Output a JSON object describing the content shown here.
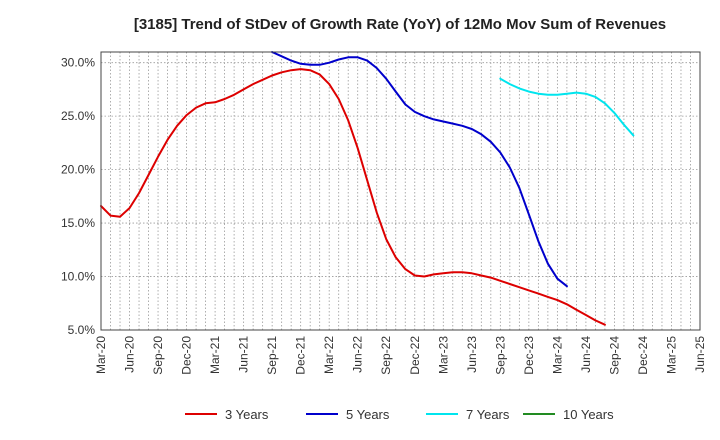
{
  "chart_data": {
    "type": "line",
    "title": "[3185]  Trend of StDev of Growth Rate (YoY) of 12Mo Mov Sum of Revenues",
    "xlabel": "",
    "ylabel": "",
    "ylim": [
      5.0,
      31.0
    ],
    "yticks": [
      5.0,
      10.0,
      15.0,
      20.0,
      25.0,
      30.0
    ],
    "ytick_labels": [
      "5.0%",
      "10.0%",
      "15.0%",
      "20.0%",
      "25.0%",
      "30.0%"
    ],
    "x_start": "Mar-20",
    "x_end": "Jun-25",
    "xtick_labels": [
      "Mar-20",
      "Jun-20",
      "Sep-20",
      "Dec-20",
      "Mar-21",
      "Jun-21",
      "Sep-21",
      "Dec-21",
      "Mar-22",
      "Jun-22",
      "Sep-22",
      "Dec-22",
      "Mar-23",
      "Jun-23",
      "Sep-23",
      "Dec-23",
      "Mar-24",
      "Jun-24",
      "Sep-24",
      "Dec-24",
      "Mar-25",
      "Jun-25"
    ],
    "grid": true,
    "legend_position": "bottom",
    "series": [
      {
        "name": "3 Years",
        "color": "#dd0000",
        "start_month_index": 0,
        "values": [
          16.6,
          15.7,
          15.6,
          16.4,
          17.8,
          19.5,
          21.2,
          22.8,
          24.1,
          25.1,
          25.8,
          26.2,
          26.3,
          26.6,
          27.0,
          27.5,
          28.0,
          28.4,
          28.8,
          29.1,
          29.3,
          29.4,
          29.3,
          28.9,
          28.0,
          26.6,
          24.6,
          22.0,
          19.0,
          16.0,
          13.5,
          11.8,
          10.7,
          10.1,
          10.0,
          10.2,
          10.3,
          10.4,
          10.4,
          10.3,
          10.1,
          9.9,
          9.6,
          9.3,
          9.0,
          8.7,
          8.4,
          8.1,
          7.8,
          7.4,
          6.9,
          6.4,
          5.9,
          5.5
        ]
      },
      {
        "name": "5 Years",
        "color": "#0000cc",
        "start_month_index": 18,
        "values": [
          31.0,
          30.6,
          30.2,
          29.9,
          29.8,
          29.8,
          30.0,
          30.3,
          30.5,
          30.5,
          30.2,
          29.5,
          28.5,
          27.3,
          26.1,
          25.4,
          25.0,
          24.7,
          24.5,
          24.3,
          24.1,
          23.8,
          23.3,
          22.6,
          21.6,
          20.2,
          18.3,
          15.8,
          13.3,
          11.2,
          9.8,
          9.1
        ]
      },
      {
        "name": "7 Years",
        "color": "#00e5ee",
        "start_month_index": 42,
        "values": [
          28.5,
          28.0,
          27.6,
          27.3,
          27.1,
          27.0,
          27.0,
          27.1,
          27.2,
          27.1,
          26.8,
          26.2,
          25.3,
          24.2,
          23.2
        ]
      },
      {
        "name": "10 Years",
        "color": "#228b22",
        "start_month_index": 0,
        "values": []
      }
    ]
  }
}
